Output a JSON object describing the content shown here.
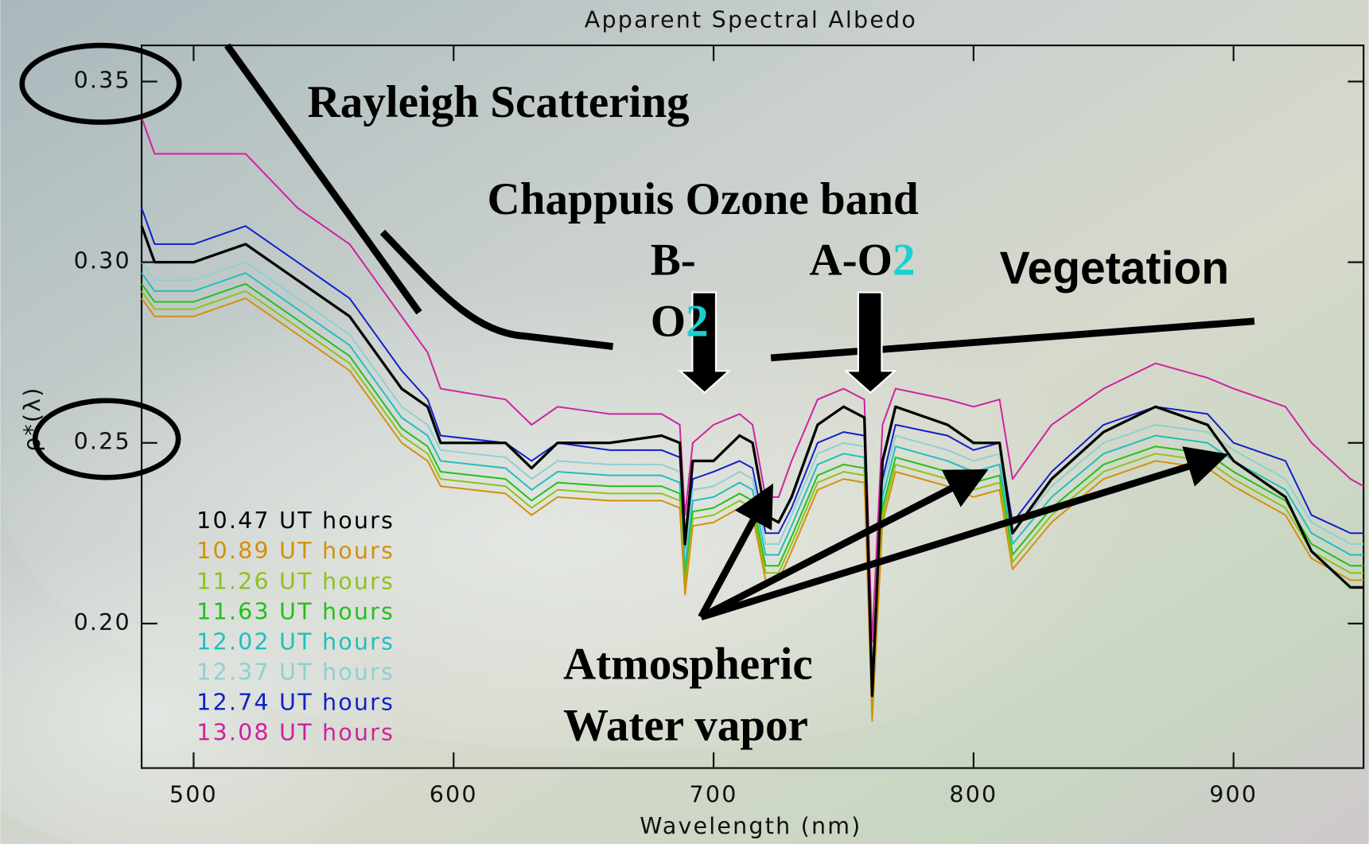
{
  "chart_data": {
    "type": "line",
    "title": "Apparent Spectral Albedo",
    "x_label": "Wavelength (nm)",
    "y_label": "ρ*(λ)",
    "x": [
      480,
      485,
      500,
      520,
      540,
      560,
      570,
      580,
      590,
      595,
      620,
      630,
      640,
      660,
      680,
      687,
      689,
      692,
      700,
      710,
      715,
      720,
      725,
      730,
      740,
      750,
      758,
      761,
      765,
      770,
      790,
      800,
      810,
      815,
      830,
      850,
      870,
      890,
      900,
      920,
      930,
      945,
      950
    ],
    "series": [
      {
        "name": "10.47 UT hours",
        "color": "#000000",
        "values": [
          0.31,
          0.3,
          0.3,
          0.305,
          0.295,
          0.285,
          0.275,
          0.265,
          0.26,
          0.25,
          0.25,
          0.243,
          0.25,
          0.25,
          0.252,
          0.25,
          0.222,
          0.245,
          0.245,
          0.252,
          0.25,
          0.23,
          0.228,
          0.235,
          0.255,
          0.26,
          0.257,
          0.18,
          0.245,
          0.26,
          0.255,
          0.25,
          0.25,
          0.225,
          0.24,
          0.253,
          0.26,
          0.255,
          0.245,
          0.235,
          0.22,
          0.21,
          0.21
        ]
      },
      {
        "name": "10.89 UT hours",
        "color": "#d4900a",
        "values": [
          0.29,
          0.285,
          0.285,
          0.29,
          0.28,
          0.27,
          0.26,
          0.25,
          0.245,
          0.238,
          0.236,
          0.23,
          0.235,
          0.234,
          0.234,
          0.232,
          0.208,
          0.227,
          0.228,
          0.232,
          0.23,
          0.212,
          0.212,
          0.22,
          0.237,
          0.24,
          0.239,
          0.173,
          0.228,
          0.242,
          0.238,
          0.235,
          0.237,
          0.215,
          0.228,
          0.24,
          0.245,
          0.243,
          0.238,
          0.23,
          0.218,
          0.212,
          0.212
        ]
      },
      {
        "name": "11.26 UT hours",
        "color": "#8fc21a",
        "values": [
          0.292,
          0.287,
          0.287,
          0.292,
          0.282,
          0.272,
          0.262,
          0.252,
          0.247,
          0.24,
          0.238,
          0.232,
          0.237,
          0.236,
          0.236,
          0.234,
          0.21,
          0.229,
          0.23,
          0.234,
          0.232,
          0.214,
          0.214,
          0.222,
          0.239,
          0.242,
          0.241,
          0.175,
          0.23,
          0.244,
          0.24,
          0.237,
          0.239,
          0.217,
          0.23,
          0.242,
          0.247,
          0.245,
          0.24,
          0.232,
          0.22,
          0.214,
          0.214
        ]
      },
      {
        "name": "11.63 UT hours",
        "color": "#22c01c",
        "values": [
          0.294,
          0.289,
          0.289,
          0.294,
          0.284,
          0.274,
          0.264,
          0.254,
          0.249,
          0.242,
          0.24,
          0.234,
          0.239,
          0.238,
          0.238,
          0.236,
          0.212,
          0.231,
          0.232,
          0.236,
          0.234,
          0.216,
          0.216,
          0.224,
          0.241,
          0.244,
          0.243,
          0.177,
          0.232,
          0.246,
          0.242,
          0.239,
          0.241,
          0.219,
          0.232,
          0.244,
          0.249,
          0.247,
          0.242,
          0.234,
          0.222,
          0.216,
          0.216
        ]
      },
      {
        "name": "12.02 UT hours",
        "color": "#1fbfc0",
        "values": [
          0.297,
          0.292,
          0.292,
          0.297,
          0.287,
          0.277,
          0.267,
          0.257,
          0.252,
          0.245,
          0.243,
          0.237,
          0.242,
          0.241,
          0.241,
          0.239,
          0.215,
          0.234,
          0.235,
          0.239,
          0.237,
          0.219,
          0.219,
          0.227,
          0.244,
          0.247,
          0.246,
          0.18,
          0.235,
          0.249,
          0.245,
          0.242,
          0.244,
          0.222,
          0.235,
          0.247,
          0.252,
          0.25,
          0.245,
          0.237,
          0.225,
          0.219,
          0.219
        ]
      },
      {
        "name": "12.37 UT hours",
        "color": "#8fcfd4",
        "values": [
          0.3,
          0.295,
          0.295,
          0.3,
          0.29,
          0.28,
          0.27,
          0.26,
          0.255,
          0.248,
          0.246,
          0.24,
          0.245,
          0.244,
          0.244,
          0.242,
          0.218,
          0.237,
          0.238,
          0.242,
          0.24,
          0.222,
          0.222,
          0.23,
          0.247,
          0.25,
          0.249,
          0.183,
          0.238,
          0.252,
          0.248,
          0.245,
          0.247,
          0.225,
          0.238,
          0.25,
          0.255,
          0.253,
          0.248,
          0.24,
          0.228,
          0.222,
          0.222
        ]
      },
      {
        "name": "12.74 UT hours",
        "color": "#1020c8",
        "values": [
          0.315,
          0.305,
          0.305,
          0.31,
          0.3,
          0.29,
          0.28,
          0.27,
          0.262,
          0.252,
          0.25,
          0.245,
          0.25,
          0.248,
          0.248,
          0.246,
          0.22,
          0.24,
          0.242,
          0.245,
          0.243,
          0.225,
          0.225,
          0.232,
          0.25,
          0.253,
          0.252,
          0.185,
          0.24,
          0.255,
          0.252,
          0.248,
          0.25,
          0.228,
          0.242,
          0.255,
          0.26,
          0.258,
          0.25,
          0.245,
          0.23,
          0.225,
          0.225
        ]
      },
      {
        "name": "13.08 UT hours",
        "color": "#d020a0",
        "values": [
          0.34,
          0.33,
          0.33,
          0.33,
          0.315,
          0.305,
          0.295,
          0.285,
          0.275,
          0.265,
          0.262,
          0.255,
          0.26,
          0.258,
          0.258,
          0.255,
          0.23,
          0.25,
          0.255,
          0.258,
          0.255,
          0.235,
          0.235,
          0.245,
          0.262,
          0.265,
          0.262,
          0.195,
          0.255,
          0.265,
          0.262,
          0.26,
          0.262,
          0.24,
          0.255,
          0.265,
          0.272,
          0.268,
          0.265,
          0.26,
          0.25,
          0.24,
          0.238
        ]
      }
    ],
    "xlim": [
      480,
      950
    ],
    "ylim": [
      0.16,
      0.36
    ],
    "xticks": [
      500,
      600,
      700,
      800,
      900
    ],
    "yticks": [
      {
        "value": 0.2,
        "label": "0.20"
      },
      0.25,
      {
        "value": 0.3,
        "label": "0.30"
      },
      0.35
    ],
    "legend": "lower left",
    "annotations": [
      "Rayleigh Scattering",
      "Chappuis Ozone band",
      "B-",
      "O",
      "2",
      "A-O",
      "2",
      "Vegetation",
      "Atmospheric",
      "Water vapor"
    ]
  }
}
